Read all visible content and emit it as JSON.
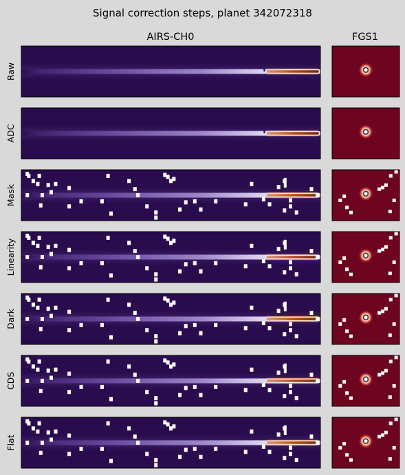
{
  "chart_data": {
    "type": "heatmap",
    "title": "Signal correction steps, planet 342072318",
    "columns": [
      "AIRS-CH0",
      "FGS1"
    ],
    "rows": [
      "Raw",
      "ADC",
      "Mask",
      "Linearity",
      "Dark",
      "CDS",
      "Flat"
    ],
    "masked_rows": [
      "Mask",
      "Linearity",
      "Dark",
      "CDS",
      "Flat"
    ],
    "colors": {
      "figure_background": "#d9d9d9",
      "airs_background": "#2a0c4e",
      "airs_spectrum_mid": "#c8b8e8",
      "airs_spectrum_peak": "#ffffff",
      "airs_hot_end": "#b84a12",
      "fgs_background": "#6d0420",
      "fgs_star_halo": "#d8343a",
      "fgs_star_core": "#ffffff",
      "mask_pixels": "#ffffff"
    }
  }
}
